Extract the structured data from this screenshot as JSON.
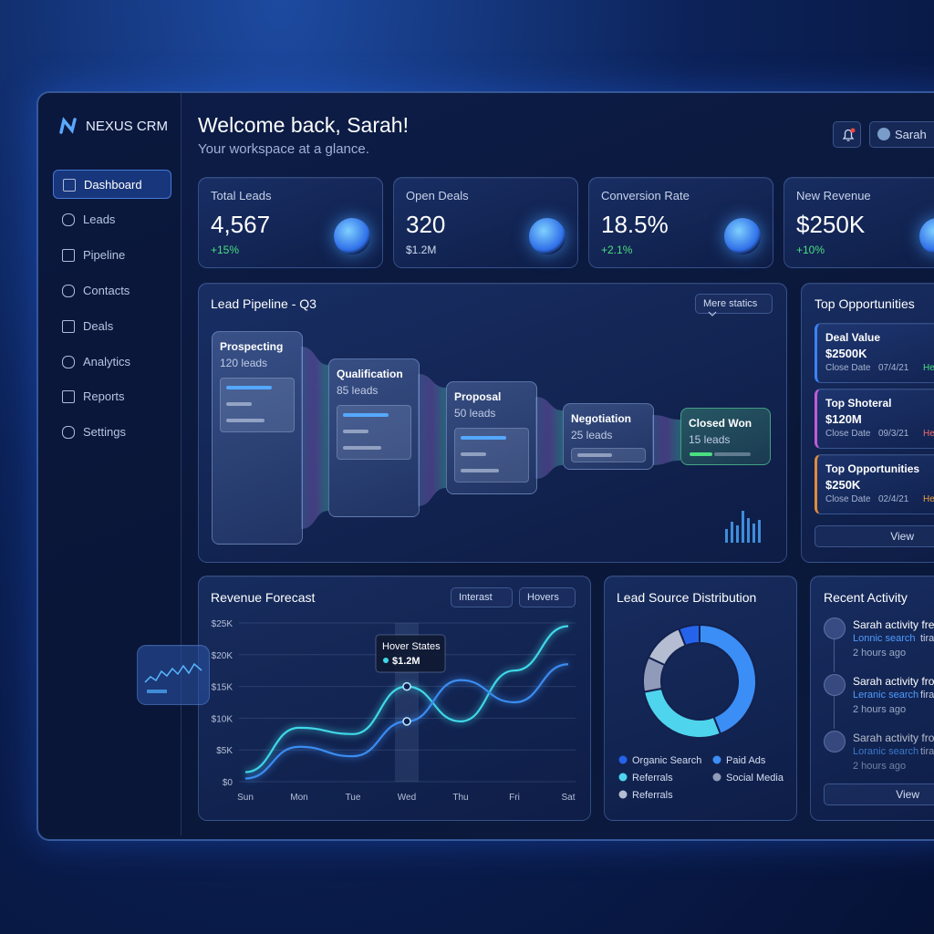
{
  "brand": "NEXUS CRM",
  "nav": [
    "Dashboard",
    "Leads",
    "Pipeline",
    "Contacts",
    "Deals",
    "Analytics",
    "Reports",
    "Settings"
  ],
  "header": {
    "title": "Welcome back, Sarah!",
    "subtitle": "Your workspace at a glance.",
    "user": "Sarah"
  },
  "kpis": [
    {
      "label": "Total Leads",
      "value": "4,567",
      "change": "+15%"
    },
    {
      "label": "Open Deals",
      "value": "320",
      "change": "$1.2M"
    },
    {
      "label": "Conversion Rate",
      "value": "18.5%",
      "change": "+2.1%"
    },
    {
      "label": "New Revenue",
      "value": "$250K",
      "change": "+10%"
    }
  ],
  "pipeline": {
    "title": "Lead Pipeline - Q3",
    "filter": "Mere statics",
    "stages": [
      {
        "name": "Prospecting",
        "count": "120 leads"
      },
      {
        "name": "Qualification",
        "count": "85 leads"
      },
      {
        "name": "Proposal",
        "count": "50 leads"
      },
      {
        "name": "Negotiation",
        "count": "25 leads"
      },
      {
        "name": "Closed Won",
        "count": "15 leads"
      }
    ]
  },
  "opportunities": {
    "title": "Top Opportunities",
    "button": "View",
    "items": [
      {
        "label": "Deal Value",
        "value": "$2500K",
        "date_label": "Close Date",
        "date": "07/4/21",
        "tag": "He",
        "color": "#3b82f6"
      },
      {
        "label": "Top Shoteral",
        "value": "$120M",
        "date_label": "Close Date",
        "date": "09/3/21",
        "tag": "He",
        "color": "#c05cd6"
      },
      {
        "label": "Top Opportunities",
        "value": "$250K",
        "date_label": "Close Date",
        "date": "02/4/21",
        "tag": "He",
        "color": "#e08a3c"
      }
    ]
  },
  "revenue_forecast": {
    "type": "line",
    "title": "Revenue Forecast",
    "filters": [
      "Interast",
      "Hovers"
    ],
    "categories": [
      "Sun",
      "Mon",
      "Tue",
      "Wed",
      "Thu",
      "Fri",
      "Sat"
    ],
    "ylim": [
      0,
      25000
    ],
    "yticks": [
      {
        "value": 0,
        "label": "$0"
      },
      {
        "value": 5000,
        "label": "$5K"
      },
      {
        "value": 10000,
        "label": "$10K"
      },
      {
        "value": 15000,
        "label": "$15K"
      },
      {
        "value": 20000,
        "label": "$20K"
      },
      {
        "value": 25000,
        "label": "$25K"
      }
    ],
    "grid": true,
    "series": [
      {
        "color": "#3fd8e8",
        "values": [
          1500,
          8500,
          7500,
          15000,
          9500,
          17500,
          24500
        ]
      },
      {
        "color": "#3b8cf0",
        "values": [
          500,
          5500,
          4000,
          9500,
          16000,
          12500,
          18500
        ]
      }
    ],
    "tooltip": {
      "title": "Hover States",
      "value": "$1.2M"
    }
  },
  "lead_sources": {
    "type": "donut",
    "title": "Lead Source Distribution",
    "categories": [
      "Organic Search",
      "Paid Ads",
      "Referrals",
      "Social Media",
      "Referrals"
    ],
    "values": [
      6,
      44,
      28,
      10,
      12
    ],
    "colors": [
      "#2563eb",
      "#3b8ef5",
      "#4fd4ee",
      "#8f9bb8",
      "#b4bdd2"
    ]
  },
  "activity": {
    "title": "Recent Activity",
    "button": "View",
    "items": [
      {
        "text": "Sarah activity fred",
        "link": "Lonnic search",
        "rest": "tira",
        "time": "2 hours ago"
      },
      {
        "text": "Sarah activity fron",
        "link": "Leranic search",
        "rest": "fira",
        "time": "2 hours ago"
      },
      {
        "text": "Sarah activity fron",
        "link": "Loranic search",
        "rest": "tira",
        "time": "2 hours ago"
      }
    ]
  }
}
